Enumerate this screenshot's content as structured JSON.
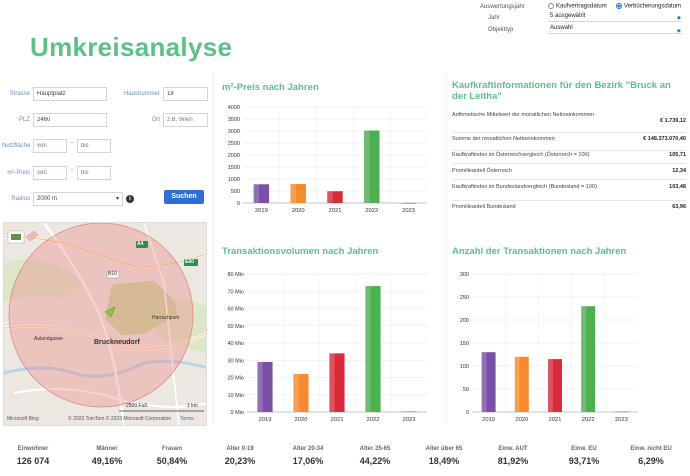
{
  "options": {
    "auswertungsjahr_label": "Auswertungsjahr",
    "radio_kaufvertrag": "Kaufvertragsdatum",
    "radio_verbuecherung": "Verbücherungsdatum",
    "jahr_label": "Jahr",
    "jahr_value": "5 ausgewählt",
    "objekttyp_label": "Objekttyp",
    "objekttyp_value": "Auswahl"
  },
  "page_title": "Umkreisanalyse",
  "form": {
    "strasse_label": "Strasse",
    "strasse_value": "Hauptplatz",
    "hausnummer_label": "Hausnummer",
    "hausnummer_value": "18",
    "plz_label": "PLZ",
    "plz_value": "2460",
    "ort_label": "Ort",
    "ort_placeholder": "z.B. Wien",
    "nutzflaeche_label": "Nutzfläche",
    "von_placeholder": "von",
    "bis_placeholder": "bis",
    "preis_label": "m²-Preis",
    "radius_label": "Radius",
    "radius_value": "2000 m",
    "search_button": "Suchen",
    "info": "i"
  },
  "map": {
    "town_label": "Bruckneudorf",
    "park_label": "Harrachpark",
    "road_aulandgasse": "Aulandgasse",
    "road_a4": "A4",
    "road_e60": "E60",
    "road_b10": "B10",
    "scale_ft": "2500 Fuß",
    "scale_km": "1 km",
    "copyright": "© 2023 TomTom  © 2023 Microsoft Corporation",
    "terms": "Terms",
    "brand": "Microsoft Bing"
  },
  "qm_preis": {
    "title": "m²-Preis nach Jahren"
  },
  "kaufkraft": {
    "title": "Kaufkraftinformationen für den Bezirk \"Bruck an der Leitha\"",
    "rows": [
      {
        "label": "Arithmetische Mittelwert der monatlichen Nettoeinkommen",
        "value": "€ 1.739,12"
      },
      {
        "label": "Summe der monatlichen Nettoeinkommen",
        "value": "€ 148.373.070,40"
      },
      {
        "label": "Kaufkraftindex im Österreichvergleich (Österreich = 100)",
        "value": "105,71"
      },
      {
        "label": "Promilleanteil Österreich",
        "value": "12,34"
      },
      {
        "label": "Kaufkraftindex im Bundeslandvergleich (Bundesland = 100)",
        "value": "103,48"
      },
      {
        "label": "Promilleanteil Bundesland",
        "value": "63,96"
      }
    ]
  },
  "transaktionsvolumen": {
    "title": "Transaktionsvolumen nach Jahren"
  },
  "anzahl": {
    "title": "Anzahl der Transaktionen nach Jahren"
  },
  "chart_data": [
    {
      "type": "bar",
      "title": "m²-Preis nach Jahren",
      "categories": [
        "2019",
        "2020",
        "2021",
        "2022",
        "2023"
      ],
      "values": [
        780,
        790,
        490,
        3020,
        0
      ],
      "colors": [
        "#7a4fa6",
        "#f58a2e",
        "#d72b3a",
        "#4caf50",
        "#3a7bd5"
      ],
      "yticks": [
        "0",
        "500",
        "1000",
        "1500",
        "2000",
        "2500",
        "3000",
        "3500",
        "4000"
      ],
      "ylim": [
        0,
        4000
      ]
    },
    {
      "type": "bar",
      "title": "Transaktionsvolumen nach Jahren",
      "categories": [
        "2019",
        "2020",
        "2021",
        "2022",
        "2023"
      ],
      "values": [
        29,
        22,
        34,
        73,
        0.3
      ],
      "colors": [
        "#7a4fa6",
        "#f58a2e",
        "#d72b3a",
        "#4caf50",
        "#3a7bd5"
      ],
      "yticks": [
        "0 Mio",
        "10 Mio",
        "20 Mio",
        "30 Mio",
        "40 Mio",
        "50 Mio",
        "60 Mio",
        "70 Mio",
        "80 Mio"
      ],
      "ylim": [
        0,
        80
      ]
    },
    {
      "type": "bar",
      "title": "Anzahl der Transaktionen nach Jahren",
      "categories": [
        "2019",
        "2020",
        "2021",
        "2022",
        "2023"
      ],
      "values": [
        130,
        120,
        115,
        230,
        1
      ],
      "colors": [
        "#7a4fa6",
        "#f58a2e",
        "#d72b3a",
        "#4caf50",
        "#3a7bd5"
      ],
      "yticks": [
        "0",
        "50",
        "100",
        "150",
        "200",
        "250",
        "300"
      ],
      "ylim": [
        0,
        300
      ]
    }
  ],
  "stats": [
    {
      "label": "Einwohner",
      "value": "126 074"
    },
    {
      "label": "Männer",
      "value": "49,16%"
    },
    {
      "label": "Frauen",
      "value": "50,84%"
    },
    {
      "label": "Alter 0-19",
      "value": "20,23%"
    },
    {
      "label": "Alter 20-34",
      "value": "17,06%"
    },
    {
      "label": "Alter 35-65",
      "value": "44,22%"
    },
    {
      "label": "Alter über 65",
      "value": "18,49%"
    },
    {
      "label": "Einw. AUT",
      "value": "81,92%"
    },
    {
      "label": "Einw. EU",
      "value": "93,71%"
    },
    {
      "label": "Einw. nicht EU",
      "value": "6,29%"
    }
  ]
}
